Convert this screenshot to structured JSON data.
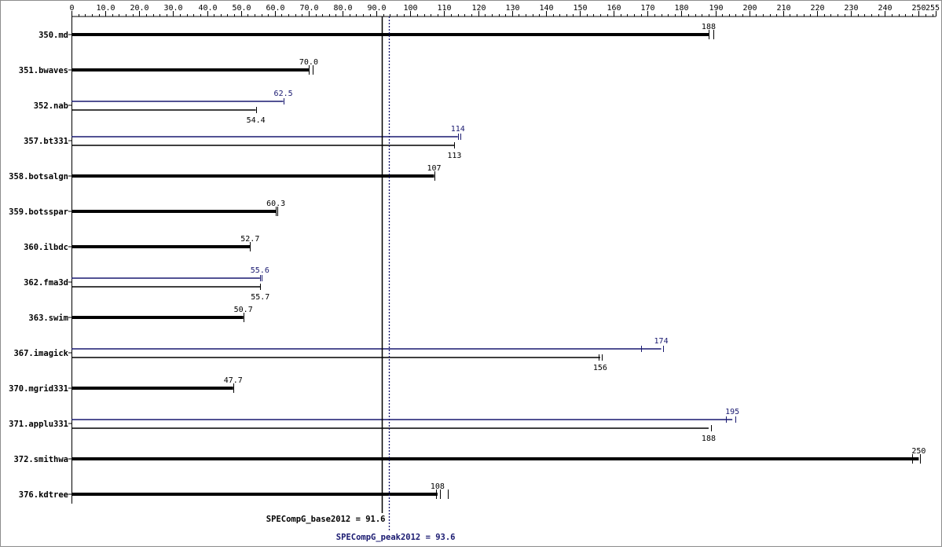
{
  "colors": {
    "base": "#000000",
    "peak": "#191970",
    "frame": "#8c8c8c"
  },
  "chart_data": {
    "type": "bar",
    "orientation": "horizontal",
    "xlim": [
      0,
      255
    ],
    "tick_labels": [
      "0",
      "10.0",
      "20.0",
      "30.0",
      "40.0",
      "50.0",
      "60.0",
      "70.0",
      "80.0",
      "90.0",
      "100",
      "110",
      "120",
      "130",
      "140",
      "150",
      "160",
      "170",
      "180",
      "190",
      "200",
      "210",
      "220",
      "230",
      "240",
      "250",
      "255"
    ],
    "tick_values": [
      0,
      10,
      20,
      30,
      40,
      50,
      60,
      70,
      80,
      90,
      100,
      110,
      120,
      130,
      140,
      150,
      160,
      170,
      180,
      190,
      200,
      210,
      220,
      230,
      240,
      250,
      255
    ],
    "categories": [
      "350.md",
      "351.bwaves",
      "352.nab",
      "357.bt331",
      "358.botsalgn",
      "359.botsspar",
      "360.ilbdc",
      "362.fma3d",
      "363.swim",
      "367.imagick",
      "370.mgrid331",
      "371.applu331",
      "372.smithwa",
      "376.kdtree"
    ],
    "series": [
      {
        "role": "base",
        "values": [
          188,
          70.0,
          54.4,
          113,
          107,
          60.3,
          52.7,
          55.7,
          50.7,
          156,
          47.7,
          188,
          250,
          108
        ],
        "labels": [
          "188",
          "70.0",
          "54.4",
          "113",
          "107",
          "60.3",
          "52.7",
          "55.7",
          "50.7",
          "156",
          "47.7",
          "188",
          "250",
          "108"
        ],
        "run_marks": [
          [
            188,
            189.5
          ],
          [
            70,
            71.2
          ],
          [
            54.4
          ],
          [
            113
          ],
          [
            107
          ],
          [
            60.3,
            60.8
          ],
          [
            52.7
          ],
          [
            55.7
          ],
          [
            50.7
          ],
          [
            155.6,
            156.4
          ],
          [
            47.7
          ],
          [
            188.8
          ],
          [
            248,
            250.3
          ],
          [
            107.5,
            108.8,
            111
          ]
        ]
      },
      {
        "role": "peak",
        "values": [
          null,
          null,
          62.5,
          114,
          null,
          null,
          null,
          55.6,
          null,
          174,
          null,
          195,
          null,
          null
        ],
        "labels": [
          null,
          null,
          "62.5",
          "114",
          null,
          null,
          null,
          "55.6",
          null,
          "174",
          null,
          "195",
          null,
          null
        ],
        "run_marks": [
          [],
          [],
          [
            62.5
          ],
          [
            114,
            114.7
          ],
          [],
          [],
          [],
          [
            55.6,
            56
          ],
          [],
          [
            168,
            174.5
          ],
          [],
          [
            193,
            196
          ],
          [],
          []
        ]
      }
    ],
    "reference_lines": [
      {
        "role": "base",
        "value": 91.6,
        "label": "SPECompG_base2012 = 91.6",
        "style": "solid"
      },
      {
        "role": "peak",
        "value": 93.6,
        "label": "SPECompG_peak2012 = 93.6",
        "style": "dotted"
      }
    ]
  }
}
